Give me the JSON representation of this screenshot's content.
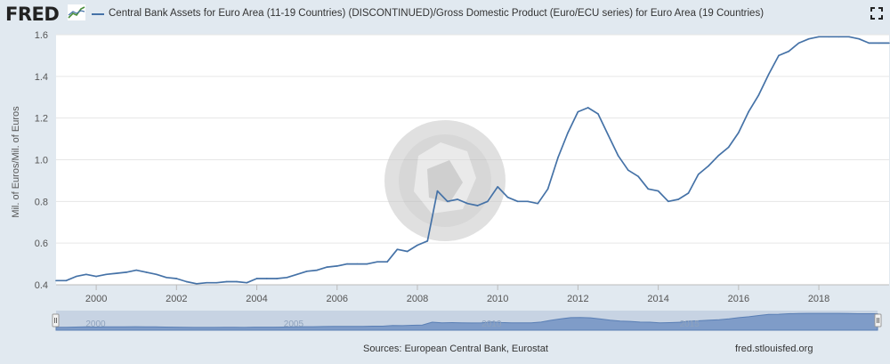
{
  "header": {
    "logo_text": "FRED",
    "legend_label": "Central Bank Assets for Euro Area (11-19 Countries) (DISCONTINUED)/Gross Domestic Product (Euro/ECU series) for Euro Area (19 Countries)",
    "fullscreen_icon": "fullscreen-icon"
  },
  "footer": {
    "sources": "Sources: European Central Bank, Eurostat",
    "site": "fred.stlouisfed.org"
  },
  "colors": {
    "series": "#4572a7",
    "navigator_fill": "#7f9cc8",
    "background": "#e1e9f0"
  },
  "chart_data": {
    "type": "line",
    "ylabel": "Mil. of Euros/Mil. of Euros",
    "xlim": [
      1999.0,
      2019.75
    ],
    "ylim": [
      0.4,
      1.6
    ],
    "y_ticks": [
      "0.4",
      "0.6",
      "0.8",
      "1.0",
      "1.2",
      "1.4",
      "1.6"
    ],
    "x_ticks": [
      "2000",
      "2002",
      "2004",
      "2006",
      "2008",
      "2010",
      "2012",
      "2014",
      "2016",
      "2018"
    ],
    "navigator_ticks": [
      "2000",
      "2005",
      "2010",
      "2015"
    ],
    "grid": true,
    "legend": "top",
    "series": [
      {
        "name": "Central Bank Assets for Euro Area (11-19 Countries) (DISCONTINUED)/Gross Domestic Product (Euro/ECU series) for Euro Area (19 Countries)",
        "x": [
          1999.0,
          1999.25,
          1999.5,
          1999.75,
          2000.0,
          2000.25,
          2000.5,
          2000.75,
          2001.0,
          2001.25,
          2001.5,
          2001.75,
          2002.0,
          2002.25,
          2002.5,
          2002.75,
          2003.0,
          2003.25,
          2003.5,
          2003.75,
          2004.0,
          2004.25,
          2004.5,
          2004.75,
          2005.0,
          2005.25,
          2005.5,
          2005.75,
          2006.0,
          2006.25,
          2006.5,
          2006.75,
          2007.0,
          2007.25,
          2007.5,
          2007.75,
          2008.0,
          2008.25,
          2008.5,
          2008.75,
          2009.0,
          2009.25,
          2009.5,
          2009.75,
          2010.0,
          2010.25,
          2010.5,
          2010.75,
          2011.0,
          2011.25,
          2011.5,
          2011.75,
          2012.0,
          2012.25,
          2012.5,
          2012.75,
          2013.0,
          2013.25,
          2013.5,
          2013.75,
          2014.0,
          2014.25,
          2014.5,
          2014.75,
          2015.0,
          2015.25,
          2015.5,
          2015.75,
          2016.0,
          2016.25,
          2016.5,
          2016.75,
          2017.0,
          2017.25,
          2017.5,
          2017.75,
          2018.0,
          2018.25,
          2018.5,
          2018.75,
          2019.0,
          2019.25,
          2019.5,
          2019.75
        ],
        "y": [
          0.42,
          0.42,
          0.44,
          0.45,
          0.44,
          0.45,
          0.455,
          0.46,
          0.47,
          0.46,
          0.45,
          0.435,
          0.43,
          0.415,
          0.405,
          0.41,
          0.41,
          0.415,
          0.415,
          0.41,
          0.43,
          0.43,
          0.43,
          0.435,
          0.45,
          0.465,
          0.47,
          0.485,
          0.49,
          0.5,
          0.5,
          0.5,
          0.51,
          0.51,
          0.57,
          0.56,
          0.59,
          0.61,
          0.85,
          0.8,
          0.81,
          0.79,
          0.78,
          0.8,
          0.87,
          0.82,
          0.8,
          0.8,
          0.79,
          0.86,
          1.01,
          1.13,
          1.23,
          1.25,
          1.22,
          1.12,
          1.02,
          0.95,
          0.92,
          0.86,
          0.85,
          0.8,
          0.81,
          0.84,
          0.93,
          0.97,
          1.02,
          1.06,
          1.13,
          1.23,
          1.31,
          1.41,
          1.5,
          1.52,
          1.56,
          1.58,
          1.59,
          1.59,
          1.59,
          1.59,
          1.58,
          1.56,
          1.56,
          1.56
        ]
      }
    ]
  }
}
